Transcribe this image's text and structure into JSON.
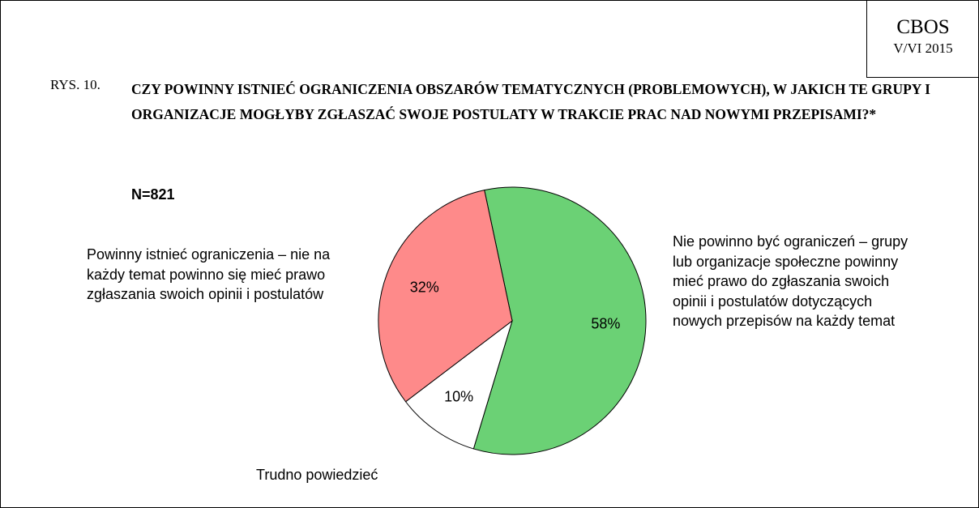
{
  "header": {
    "org": "CBOS",
    "date": "V/VI 2015"
  },
  "chart_data": {
    "type": "pie",
    "figure_label": "RYS. 10.",
    "title": "CZY POWINNY ISTNIEĆ OGRANICZENIA OBSZARÓW TEMATYCZNYCH (PROBLEMOWYCH), W JAKICH TE GRUPY I ORGANIZACJE MOGŁYBY ZGŁASZAĆ SWOJE POSTULATY W TRAKCIE PRAC NAD NOWYMI PRZEPISAMI?*",
    "annotation": "N=821",
    "categories": [
      "Nie powinno być ograniczeń – grupy lub organizacje społeczne powinny mieć prawo do zgłaszania swoich opinii i postulatów dotyczących nowych przepisów na każdy temat",
      "Trudno powiedzieć",
      "Powinny istnieć ograniczenia – nie na każdy temat powinno się mieć prawo zgłaszania swoich opinii i postulatów"
    ],
    "values": [
      58,
      10,
      32
    ],
    "value_labels": [
      "58%",
      "10%",
      "32%"
    ],
    "colors": [
      "#6bd175",
      "#ffffff",
      "#fe8a8a"
    ]
  }
}
